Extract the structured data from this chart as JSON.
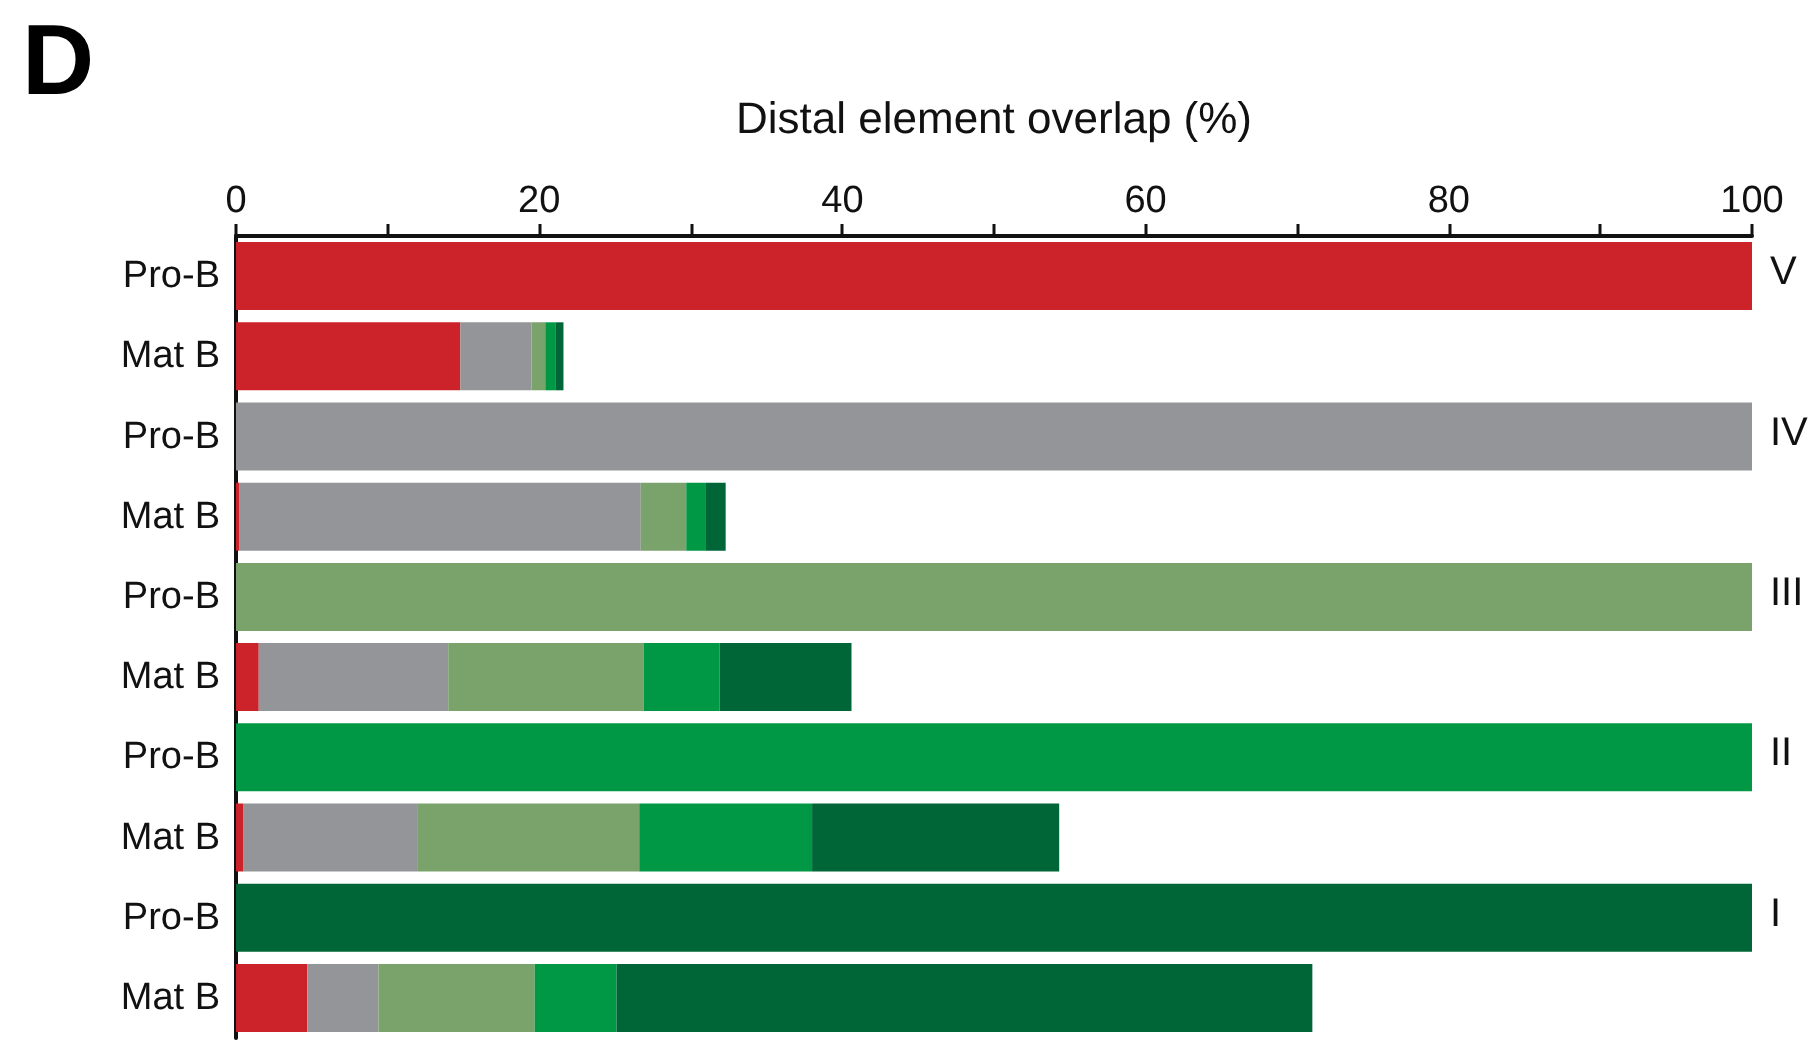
{
  "chart_data": {
    "type": "bar",
    "orientation": "horizontal",
    "stacked": true,
    "title": "D",
    "xlabel": "Distal element overlap (%)",
    "categories": [
      "Pro-B",
      "Mat B",
      "Pro-B",
      "Mat B",
      "Pro-B",
      "Mat B",
      "Pro-B",
      "Mat B",
      "Pro-B",
      "Mat B"
    ],
    "series": [
      {
        "color": "#cc2229",
        "values": [
          100,
          14.8,
          null,
          0.2,
          null,
          1.5,
          null,
          0.5,
          null,
          4.7
        ]
      },
      {
        "color": "#939598",
        "values": [
          null,
          4.7,
          100,
          26.5,
          null,
          12.5,
          null,
          11.5,
          null,
          4.7
        ]
      },
      {
        "color": "#7aa36c",
        "values": [
          null,
          0.9,
          null,
          3.0,
          100,
          12.9,
          null,
          14.6,
          null,
          10.3
        ]
      },
      {
        "color": "#009845",
        "values": [
          null,
          0.7,
          null,
          1.3,
          null,
          5.0,
          100,
          11.4,
          null,
          5.4
        ]
      },
      {
        "color": "#006638",
        "values": [
          null,
          0.5,
          null,
          1.3,
          null,
          8.7,
          null,
          16.3,
          100,
          45.9
        ]
      }
    ],
    "xlim": [
      0,
      100
    ],
    "xticks": [
      0,
      {
        "value": 10,
        "label": null
      },
      20,
      {
        "value": 30,
        "label": null
      },
      40,
      {
        "value": 50,
        "label": null
      },
      60,
      {
        "value": 70,
        "label": null
      },
      80,
      {
        "value": 90,
        "label": null
      },
      100
    ],
    "grid": false,
    "annotations": [
      "V",
      "IV",
      "III",
      "II",
      "I"
    ]
  }
}
